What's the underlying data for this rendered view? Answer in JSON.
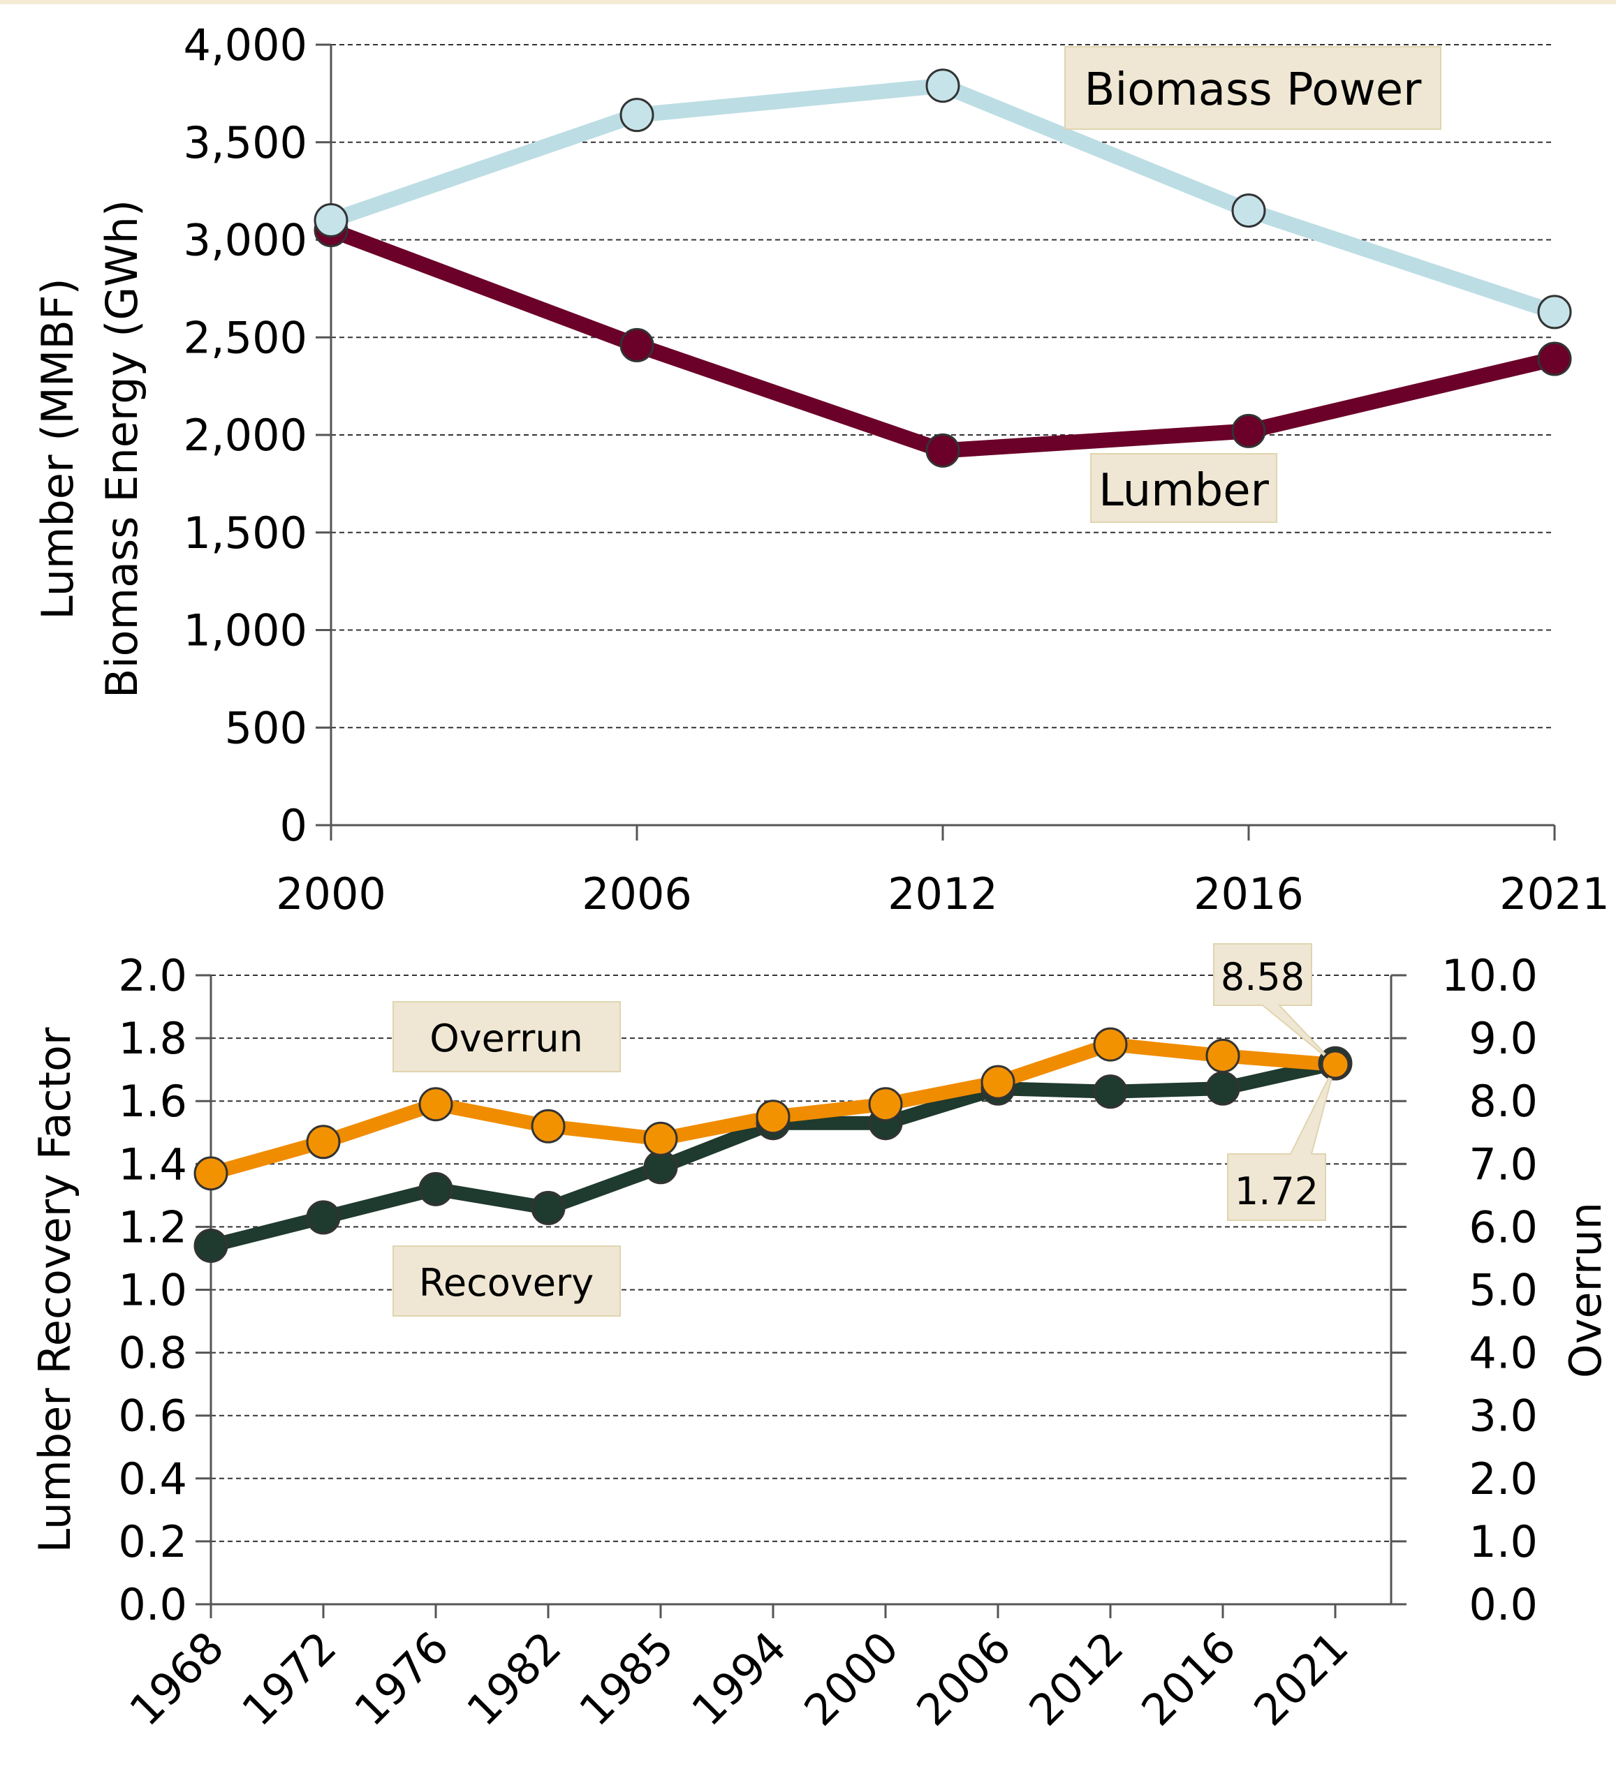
{
  "chart_data": [
    {
      "type": "line",
      "ylabel_lines": [
        "Lumber (MMBF)",
        "Biomass Energy (GWh)"
      ],
      "ylim": [
        0,
        4000
      ],
      "y_ticks": [
        "0",
        "500",
        "1,000",
        "1,500",
        "2,000",
        "2,500",
        "3,000",
        "3,500",
        "4,000"
      ],
      "y_tick_values": [
        0,
        500,
        1000,
        1500,
        2000,
        2500,
        3000,
        3500,
        4000
      ],
      "categories": [
        "2000",
        "2006",
        "2012",
        "2016",
        "2021"
      ],
      "grid": true,
      "series": [
        {
          "name": "Biomass Power",
          "values": [
            3100,
            3640,
            3790,
            3150,
            2630
          ],
          "line_color": "#bcdde4",
          "marker_color": "#c6e3ea"
        },
        {
          "name": "Lumber",
          "values": [
            3050,
            2460,
            1920,
            2020,
            2390
          ],
          "line_color": "#6b0028",
          "marker_color": "#6b0028"
        }
      ]
    },
    {
      "type": "line",
      "ylabel": "Lumber Recovery Factor",
      "y2label": "Overrun",
      "ylim": [
        0,
        2.0
      ],
      "y2lim": [
        0,
        10.0
      ],
      "y_ticks": [
        "0.0",
        "0.2",
        "0.4",
        "0.6",
        "0.8",
        "1.0",
        "1.2",
        "1.4",
        "1.6",
        "1.8",
        "2.0"
      ],
      "y_tick_values": [
        0,
        0.2,
        0.4,
        0.6,
        0.8,
        1.0,
        1.2,
        1.4,
        1.6,
        1.8,
        2.0
      ],
      "y2_ticks": [
        "0.0",
        "1.0",
        "2.0",
        "3.0",
        "4.0",
        "5.0",
        "6.0",
        "7.0",
        "8.0",
        "9.0",
        "10.0"
      ],
      "categories": [
        "1968",
        "1972",
        "1976",
        "1982",
        "1985",
        "1994",
        "2000",
        "2006",
        "2012",
        "2016",
        "2021"
      ],
      "grid": true,
      "series": [
        {
          "name": "Recovery",
          "axis": "left",
          "values": [
            1.14,
            1.23,
            1.32,
            1.26,
            1.39,
            1.53,
            1.53,
            1.64,
            1.63,
            1.64,
            1.72
          ],
          "line_color": "#1f3a2e",
          "marker_color": "#1f3a2e"
        },
        {
          "name": "Overrun",
          "axis": "right",
          "values": [
            6.85,
            7.35,
            7.95,
            7.6,
            7.4,
            7.75,
            7.95,
            8.3,
            8.9,
            8.72,
            8.58
          ],
          "line_color": "#f08c00",
          "marker_color": "#f39200"
        }
      ],
      "annotations": [
        "8.58",
        "1.72"
      ]
    }
  ]
}
